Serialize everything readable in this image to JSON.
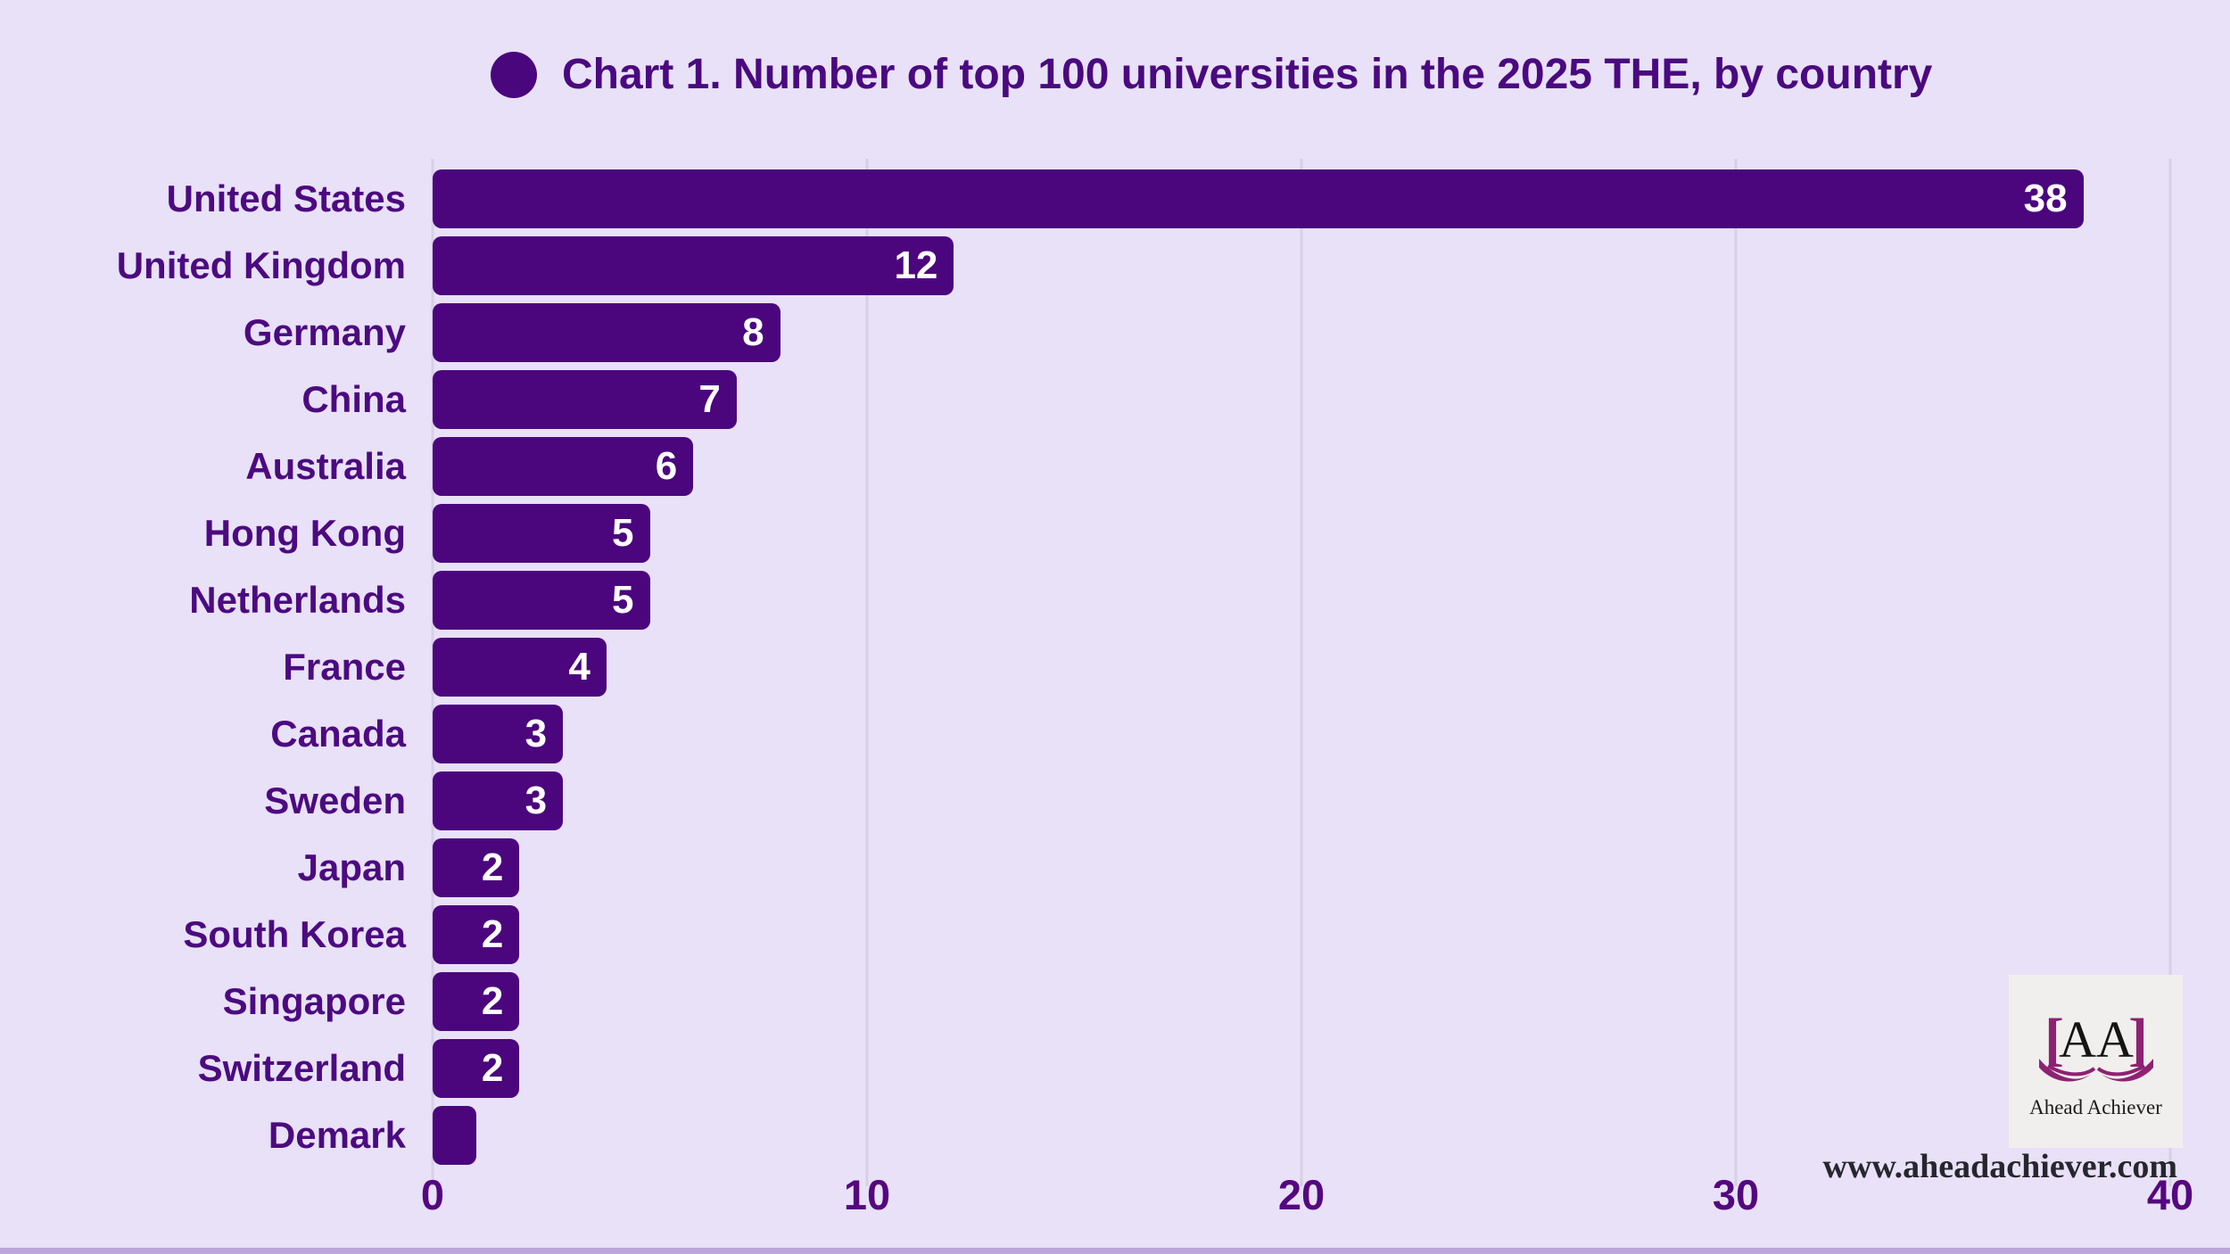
{
  "title": {
    "text": "Chart 1. Number of top 100 universities in the 2025 THE, by country"
  },
  "chart_data": {
    "type": "bar",
    "orientation": "horizontal",
    "title": "Chart 1. Number of top 100 universities in the 2025 THE, by country",
    "categories": [
      "United States",
      "United Kingdom",
      "Germany",
      "China",
      "Australia",
      "Hong Kong",
      "Netherlands",
      "France",
      "Canada",
      "Sweden",
      "Japan",
      "South Korea",
      "Singapore",
      "Switzerland",
      "Demark"
    ],
    "values": [
      38,
      12,
      8,
      7,
      6,
      5,
      5,
      4,
      3,
      3,
      2,
      2,
      2,
      2,
      1
    ],
    "value_labels": [
      "38",
      "12",
      "8",
      "7",
      "6",
      "5",
      "5",
      "4",
      "3",
      "3",
      "2",
      "2",
      "2",
      "2",
      ""
    ],
    "xlabel": "",
    "ylabel": "",
    "xlim": [
      0,
      40
    ],
    "x_ticks": [
      0,
      10,
      20,
      30,
      40
    ],
    "grid": "vertical-only",
    "legend": "none",
    "bar_color": "#4B067E",
    "background_color": "#E8E1F7"
  },
  "watermark": {
    "logo_bracket_left": "[",
    "logo_letters": "AA",
    "logo_bracket_right": "]",
    "logo_caption": "Ahead Achiever",
    "website": "www.aheadachiever.com"
  },
  "colors": {
    "bar": "#4B067E",
    "background": "#E8E1F7",
    "text_purple": "#4C0A80",
    "tick_purple": "#55077F",
    "gridline": "#D8D0E8",
    "value_text": "#FFFFFF",
    "logo_magenta": "#8E2272",
    "logo_card_bg": "#F1EFED",
    "bottom_strip": "#BCA5DA"
  }
}
